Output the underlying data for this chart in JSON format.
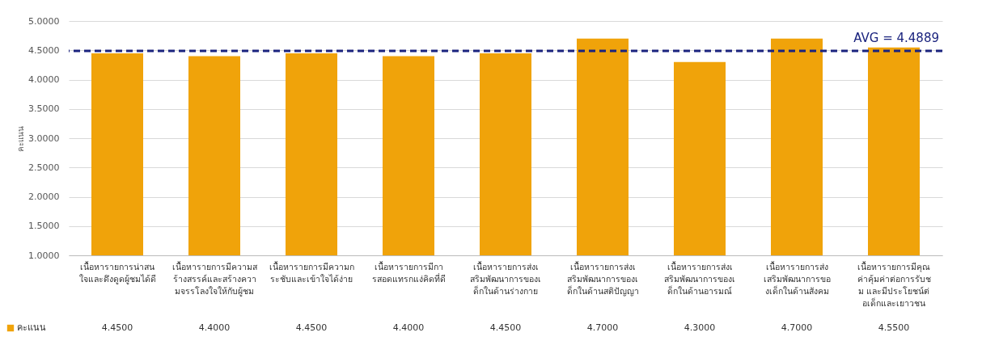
{
  "chart_data": {
    "type": "bar",
    "ylabel": "คะแนน",
    "categories": [
      "เนื้อหารายการน่าสนใจและดึงดูดผู้ชมได้ดี",
      "เนื้อหารายการมีความสร้างสรรค์และสร้างความจรรโลงใจให้กับผู้ชม",
      "เนื้อหารายการมีความกระชับและเข้าใจได้ง่าย",
      "เนื้อหารายการมีการสอดแทรกแง่คิดที่ดี",
      "เนื้อหารายการส่งเสริมพัฒนาการของเด็กในด้านร่างกาย",
      "เนื้อหารายการส่งเสริมพัฒนาการของเด็กในด้านสติปัญญา",
      "เนื้อหารายการส่งเสริมพัฒนาการของเด็กในด้านอารมณ์",
      "เนื้อหารายการส่งเสริมพัฒนาการของเด็กในด้านสังคม",
      "เนื้อหารายการมีคุณค่าคุ้มค่าต่อการรับชม และมีประโยชน์ต่อเด็กและเยาวชน"
    ],
    "series": [
      {
        "name": "คะแนน",
        "color": "#f0a30a",
        "values": [
          4.45,
          4.4,
          4.45,
          4.4,
          4.45,
          4.7,
          4.3,
          4.7,
          4.55
        ]
      }
    ],
    "ylim": [
      1,
      5
    ],
    "yticks": [
      {
        "value": 1,
        "label": "1.0000"
      },
      {
        "value": 1.5,
        "label": "1.5000"
      },
      {
        "value": 2,
        "label": "2.0000"
      },
      {
        "value": 2.5,
        "label": "2.5000"
      },
      {
        "value": 3,
        "label": "3.0000"
      },
      {
        "value": 3.5,
        "label": "3.5000"
      },
      {
        "value": 4,
        "label": "4.0000"
      },
      {
        "value": 4.5,
        "label": "4.5000"
      },
      {
        "value": 5,
        "label": "5.0000"
      }
    ],
    "ref_lines": [
      {
        "axis": "y",
        "value": 4.4889,
        "label": "AVG = 4.4889",
        "color": "#1a237e",
        "line_style": "dashed"
      }
    ],
    "value_labels": [
      "4.4500",
      "4.4000",
      "4.4500",
      "4.4000",
      "4.4500",
      "4.7000",
      "4.3000",
      "4.7000",
      "4.5500"
    ],
    "grid": "y",
    "legend": "bottom left"
  }
}
